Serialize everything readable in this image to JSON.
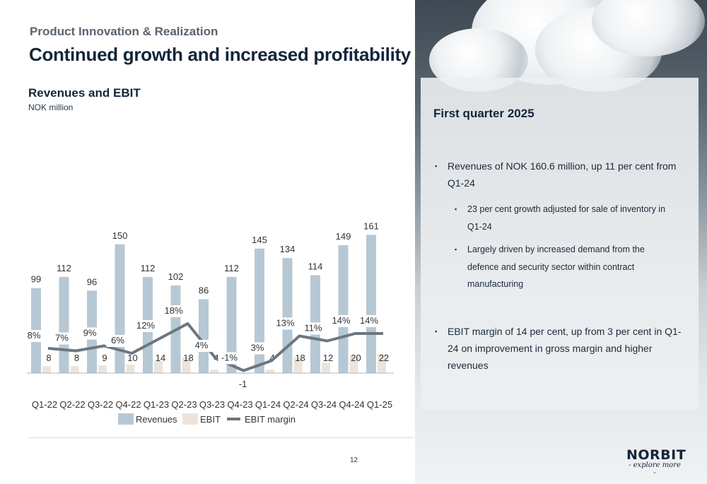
{
  "header": {
    "section": "Product Innovation & Realization",
    "title": "Continued growth and increased profitability"
  },
  "chart_data": {
    "type": "bar",
    "title": "Revenues and EBIT",
    "subtitle": "NOK million",
    "categories": [
      "Q1-22",
      "Q2-22",
      "Q3-22",
      "Q4-22",
      "Q1-23",
      "Q2-23",
      "Q3-23",
      "Q4-23",
      "Q1-24",
      "Q2-24",
      "Q3-24",
      "Q4-24",
      "Q1-25"
    ],
    "series": [
      {
        "name": "Revenues",
        "type": "bar",
        "color": "#b7c8d5",
        "values": [
          99,
          112,
          96,
          150,
          112,
          102,
          86,
          112,
          145,
          134,
          114,
          149,
          161
        ]
      },
      {
        "name": "EBIT",
        "type": "bar",
        "color": "#ece4da",
        "values": [
          8,
          8,
          9,
          10,
          14,
          18,
          4,
          -1,
          4,
          18,
          12,
          20,
          22
        ]
      },
      {
        "name": "EBIT margin",
        "type": "line",
        "color": "#6c7680",
        "values": [
          8,
          7,
          9,
          6,
          12,
          18,
          4,
          -1,
          3,
          13,
          11,
          14,
          14
        ],
        "labels": [
          "8%",
          "7%",
          "9%",
          "6%",
          "12%",
          "18%",
          "4%",
          "-1%",
          "3%",
          "13%",
          "11%",
          "14%",
          "14%"
        ]
      }
    ],
    "legend": "bottom"
  },
  "panel": {
    "title": "First quarter 2025",
    "bullet1": [
      "Revenues of NOK 160.6 million, up 11 per cent from",
      "Q1-24"
    ],
    "sub1": [
      "23 per cent growth adjusted for sale of inventory in",
      "Q1-24"
    ],
    "sub2": [
      "Largely driven by increased demand from the",
      "defence and security sector within contract",
      "manufacturing"
    ],
    "bullet2": [
      "EBIT margin of 14 per cent, up from 3 per cent in Q1-",
      "24 on improvement in gross margin and higher",
      "revenues"
    ],
    "bullet_mark": "▪"
  },
  "footer": {
    "page_number": "12",
    "logo_text": "NORBIT",
    "logo_tagline": "- explore more -"
  }
}
